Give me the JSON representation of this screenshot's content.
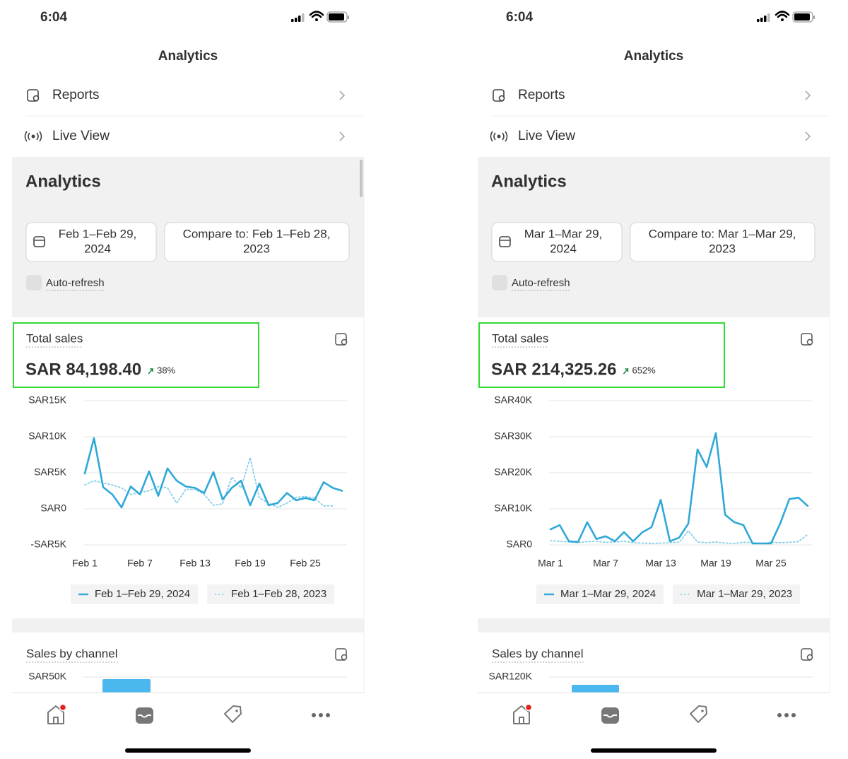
{
  "screens": [
    {
      "status_time": "6:04",
      "header_title": "Analytics",
      "menu": [
        "Reports",
        "Live View"
      ],
      "section_title": "Analytics",
      "date_button": [
        "Feb 1–Feb 29,",
        "2024"
      ],
      "compare_button": [
        "Compare to: Feb 1–Feb 28,",
        "2023"
      ],
      "auto_refresh": "Auto-refresh",
      "card_title": "Total sales",
      "total": "SAR 84,198.40",
      "change": "38%",
      "channel_title": "Sales by channel",
      "channel_tick": "SAR50K"
    },
    {
      "status_time": "6:04",
      "header_title": "Analytics",
      "menu": [
        "Reports",
        "Live View"
      ],
      "section_title": "Analytics",
      "date_button": [
        "Mar 1–Mar 29,",
        "2024"
      ],
      "compare_button": [
        "Compare to: Mar 1–Mar 29,",
        "2023"
      ],
      "auto_refresh": "Auto-refresh",
      "card_title": "Total sales",
      "total": "SAR 214,325.26",
      "change": "652%",
      "channel_title": "Sales by channel",
      "channel_tick": "SAR120K"
    }
  ],
  "chart_data": [
    {
      "type": "line",
      "categories": [
        "Feb 1",
        null,
        null,
        null,
        null,
        null,
        "Feb 7",
        null,
        null,
        null,
        null,
        null,
        "Feb 13",
        null,
        null,
        null,
        null,
        null,
        "Feb 19",
        null,
        null,
        null,
        null,
        null,
        "Feb 25",
        null,
        null,
        null,
        null
      ],
      "series": [
        {
          "name": "Feb 1–Feb 29, 2024",
          "color": "#2fa8d8",
          "style": "solid",
          "values": [
            4900,
            9800,
            3000,
            2000,
            200,
            3100,
            2000,
            5200,
            1800,
            5600,
            3900,
            3100,
            2900,
            2200,
            5100,
            1300,
            2900,
            3900,
            500,
            3500,
            500,
            800,
            2200,
            1200,
            1500,
            1200,
            3700,
            2900,
            2500
          ]
        },
        {
          "name": "Feb 1–Feb 28, 2023",
          "color": "#86cfe9",
          "style": "dotted",
          "values": [
            3300,
            3900,
            3600,
            3300,
            2900,
            2000,
            2300,
            2500,
            3100,
            2900,
            800,
            2700,
            2700,
            2000,
            500,
            700,
            4400,
            2900,
            7100,
            1500,
            800,
            200,
            800,
            1600,
            1700,
            1500,
            400,
            400,
            null
          ]
        }
      ],
      "ylim": [
        -5000,
        15000
      ],
      "yticks": [
        {
          "value": -5000,
          "label": "-SAR5K"
        },
        {
          "value": 0,
          "label": "SAR0"
        },
        {
          "value": 5000,
          "label": "SAR5K"
        },
        {
          "value": 10000,
          "label": "SAR10K"
        },
        {
          "value": 15000,
          "label": "SAR15K"
        }
      ],
      "grid": true
    },
    {
      "type": "line",
      "categories": [
        "Mar 1",
        null,
        null,
        null,
        null,
        null,
        "Mar 7",
        null,
        null,
        null,
        null,
        null,
        "Mar 13",
        null,
        null,
        null,
        null,
        null,
        "Mar 19",
        null,
        null,
        null,
        null,
        null,
        "Mar 25",
        null,
        null,
        null,
        null
      ],
      "series": [
        {
          "name": "Mar 1–Mar 29, 2024",
          "color": "#2fa8d8",
          "style": "solid",
          "values": [
            4300,
            5500,
            1000,
            800,
            6300,
            1600,
            2400,
            1000,
            3500,
            1000,
            3500,
            4900,
            12500,
            1000,
            2000,
            5900,
            26500,
            21600,
            31000,
            8400,
            6300,
            5500,
            400,
            400,
            400,
            5900,
            12700,
            13100,
            10800
          ]
        },
        {
          "name": "Mar 1–Mar 29, 2023",
          "color": "#86cfe9",
          "style": "dotted",
          "values": [
            1200,
            1000,
            800,
            600,
            900,
            1000,
            700,
            800,
            1000,
            600,
            500,
            400,
            500,
            600,
            700,
            3900,
            800,
            600,
            800,
            500,
            400,
            700,
            600,
            400,
            700,
            600,
            700,
            900,
            2900
          ]
        }
      ],
      "ylim": [
        0,
        40000
      ],
      "yticks": [
        {
          "value": 0,
          "label": "SAR0"
        },
        {
          "value": 10000,
          "label": "SAR10K"
        },
        {
          "value": 20000,
          "label": "SAR20K"
        },
        {
          "value": 30000,
          "label": "SAR30K"
        },
        {
          "value": 40000,
          "label": "SAR40K"
        }
      ],
      "grid": true
    }
  ]
}
